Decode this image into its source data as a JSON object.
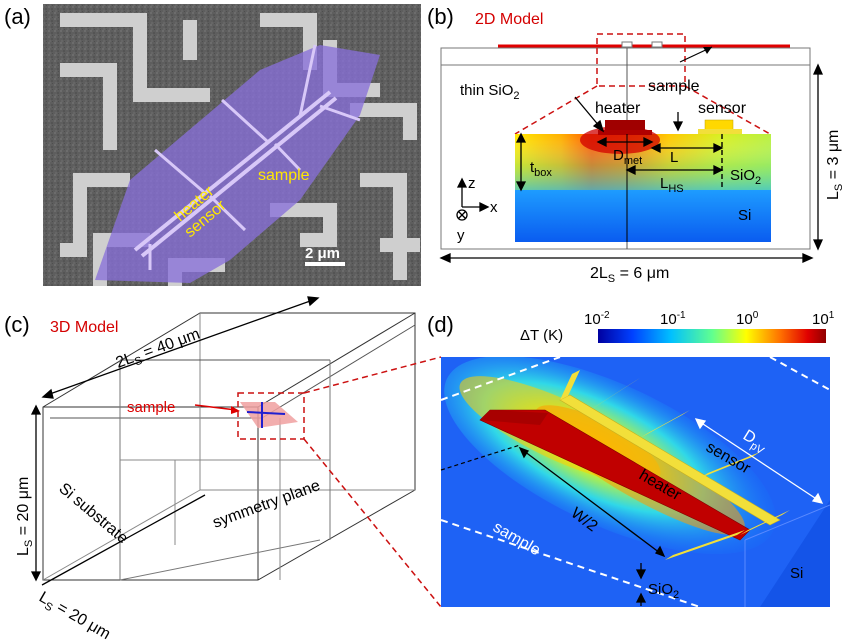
{
  "panels": {
    "a": {
      "letter": "(a)",
      "labels": {
        "heater": "heater",
        "sensor": "sensor",
        "sample": "sample",
        "scale": "2 μm"
      }
    },
    "b": {
      "letter": "(b)",
      "title": "2D Model",
      "labels": {
        "thin_sio2": "thin SiO",
        "thin_sio2_sub": "2",
        "heater": "heater",
        "sensor": "sensor",
        "sample": "sample",
        "t_box": "t",
        "t_box_sub": "box",
        "d_met": "D",
        "d_met_sub": "met",
        "l": "L",
        "l_hs": "L",
        "l_hs_sub": "HS",
        "sio2": "SiO",
        "sio2_sub": "2",
        "si": "Si",
        "axis_z": "z",
        "axis_x": "x",
        "axis_y": "y",
        "width_a": "2L",
        "width_sub": "S",
        "width_b": " = 6 μm",
        "height_a": "L",
        "height_sub": "S",
        "height_b": " = 3 μm"
      }
    },
    "c": {
      "letter": "(c)",
      "title": "3D Model",
      "labels": {
        "top_a": "2L",
        "top_sub": "S",
        "top_b": " = 40 μm",
        "left_a": "L",
        "left_sub": "S",
        "left_b": " = 20 μm",
        "bottom_a": "L",
        "bottom_sub": "S",
        "bottom_b": " = 20 μm",
        "sample": "sample",
        "si_substrate": "Si substrate",
        "symmetry_plane": "symmetry plane"
      }
    },
    "d": {
      "letter": "(d)",
      "labels": {
        "delta_t": "ΔT (K)",
        "heater": "heater",
        "sensor": "sensor",
        "sample": "sample",
        "w2": "W/2",
        "dpv": "D",
        "dpv_sub": "pV",
        "sio2": "SiO",
        "sio2_sub": "2",
        "si": "Si"
      },
      "colorbar": {
        "ticks": [
          {
            "base": "10",
            "exp": "-2"
          },
          {
            "base": "10",
            "exp": "-1"
          },
          {
            "base": "10",
            "exp": "0"
          },
          {
            "base": "10",
            "exp": "1"
          }
        ]
      }
    }
  },
  "colors": {
    "title_red": "#d40000",
    "callout_red": "#cc1111",
    "sample_purple": "#8870d8",
    "label_yellow": "#ffe800",
    "heater_red": "#c00000",
    "sensor_yellow": "#f2df3a",
    "sio2_blue": "#1f70ff",
    "si_blue": "#0a47e0"
  }
}
